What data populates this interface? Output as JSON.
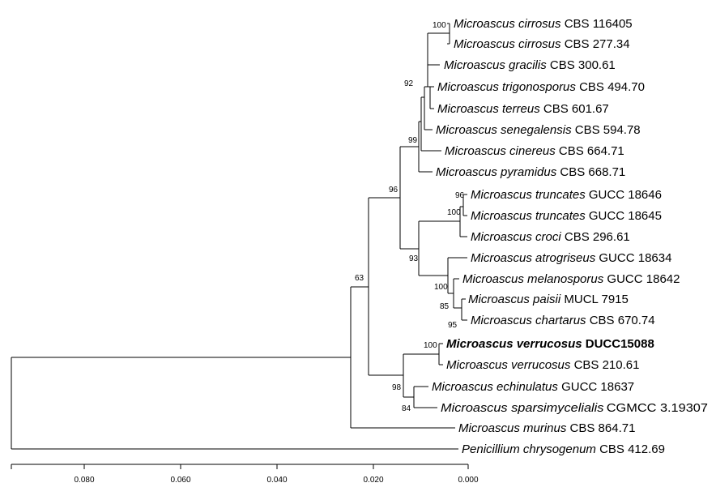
{
  "taxa": [
    {
      "id": "cirrosus1",
      "name": "Microascus cirrosus",
      "strain": "CBS 116405"
    },
    {
      "id": "cirrosus2",
      "name": "Microascus cirrosus",
      "strain": "CBS 277.34"
    },
    {
      "id": "gracilis",
      "name": "Microascus gracilis",
      "strain": "CBS 300.61"
    },
    {
      "id": "trigonosporus",
      "name": "Microascus trigonosporus",
      "strain": "CBS 494.70"
    },
    {
      "id": "terreus",
      "name": "Microascus terreus",
      "strain": "CBS 601.67"
    },
    {
      "id": "senegalensis",
      "name": "Microascus senegalensis",
      "strain": "CBS 594.78"
    },
    {
      "id": "cinereus",
      "name": "Microascus cinereus",
      "strain": "CBS 664.71"
    },
    {
      "id": "pyramidus",
      "name": "Microascus pyramidus",
      "strain": "CBS 668.71"
    },
    {
      "id": "truncates1",
      "name": "Microascus truncates",
      "strain": "GUCC 18646"
    },
    {
      "id": "truncates2",
      "name": "Microascus truncates",
      "strain": "GUCC 18645"
    },
    {
      "id": "croci",
      "name": "Microascus croci",
      "strain": "CBS 296.61"
    },
    {
      "id": "atrogriseus",
      "name": "Microascus atrogriseus",
      "strain": "GUCC 18634"
    },
    {
      "id": "melanosporus",
      "name": "Microascus melanosporus",
      "strain": "GUCC 18642"
    },
    {
      "id": "paisii",
      "name": "Microascus paisii",
      "strain": "MUCL 7915"
    },
    {
      "id": "chartarus",
      "name": "Microascus chartarus",
      "strain": "CBS 670.74"
    },
    {
      "id": "verrucosus_new",
      "name": "Microascus verrucosus",
      "strain": "DUCC15088",
      "highlight": true
    },
    {
      "id": "verrucosus",
      "name": "Microascus verrucosus",
      "strain": "CBS 210.61"
    },
    {
      "id": "echinulatus",
      "name": "Microascus echinulatus",
      "strain": "GUCC 18637"
    },
    {
      "id": "sparsimycelialis",
      "name": "Microascus sparsimycelialis",
      "strain": "CGMCC 3.19307"
    },
    {
      "id": "murinus",
      "name": "Microascus murinus",
      "strain": "CBS 864.71"
    },
    {
      "id": "chrysogenum",
      "name": "Penicillium chrysogenum",
      "strain": "CBS 412.69"
    }
  ],
  "support_values": [
    "100",
    "92",
    "99",
    "96",
    "96",
    "100",
    "93",
    "100",
    "85",
    "95",
    "100",
    "98",
    "84",
    "63"
  ],
  "scale_axis": {
    "ticks": [
      "0.080",
      "0.060",
      "0.040",
      "0.020",
      "0.000"
    ]
  }
}
